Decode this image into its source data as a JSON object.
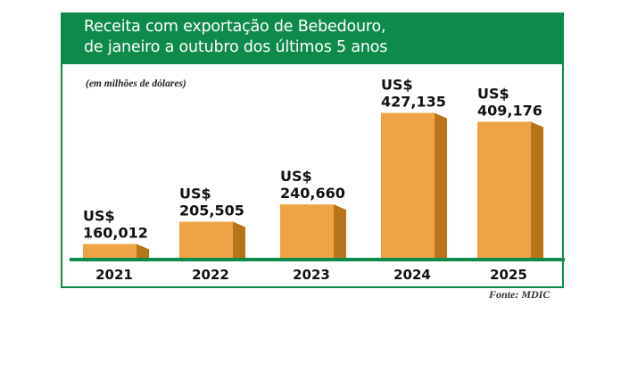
{
  "chart_data": {
    "type": "bar",
    "title": "Receita com exportação de Bebedouro,",
    "title_line2": "de janeiro a outubro dos últimos 5 anos",
    "subtitle": "(em milhões de dólares)",
    "categories": [
      "2021",
      "2022",
      "2023",
      "2024",
      "2025"
    ],
    "values": [
      160.012,
      205.505,
      240.66,
      427.135,
      409.176
    ],
    "data_labels": [
      "160,012",
      "205,505",
      "240,660",
      "427,135",
      "409,176"
    ],
    "label_prefix": "US$",
    "source": "Fonte: MDIC",
    "ylim": [
      130,
      430
    ],
    "grid": false,
    "legend": "none",
    "colors": {
      "bar_front": "#eea446",
      "bar_side": "#b87418",
      "accent": "#0e8a4a"
    }
  }
}
